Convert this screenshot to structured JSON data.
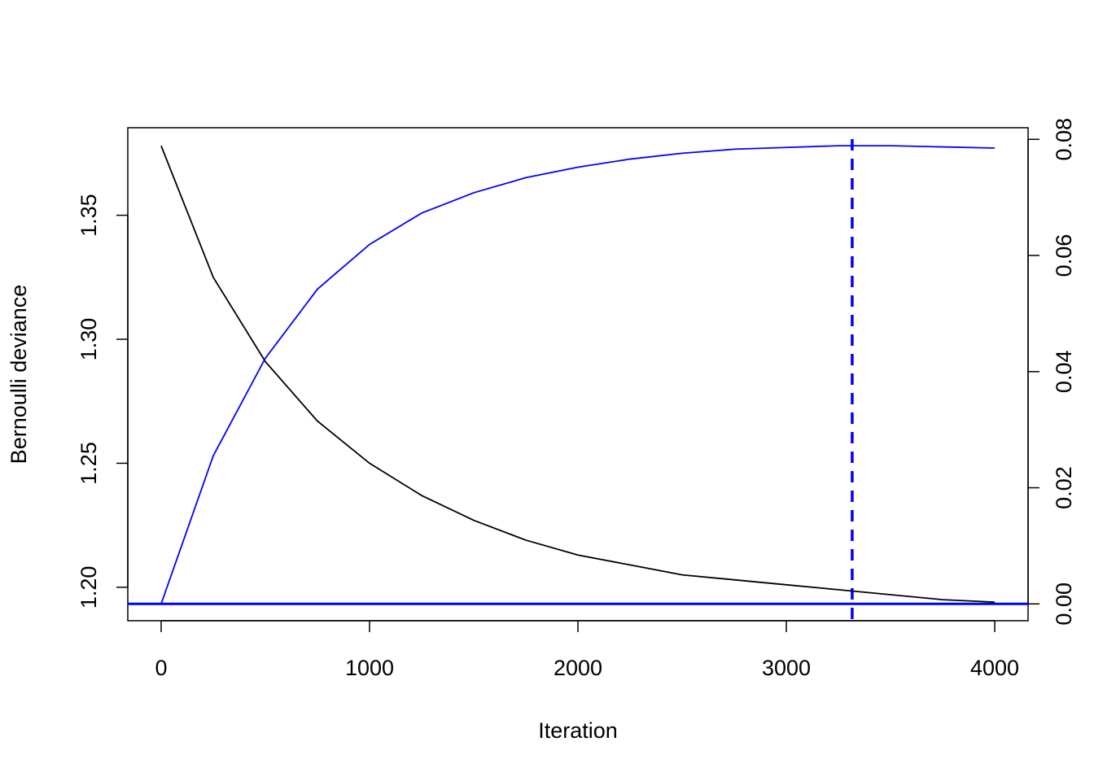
{
  "chart_data": {
    "type": "line",
    "x_label": "Iteration",
    "y_label": "Bernoulli deviance",
    "x": [
      0,
      250,
      500,
      750,
      1000,
      1250,
      1500,
      1750,
      2000,
      2250,
      2500,
      2750,
      3000,
      3250,
      3500,
      3750,
      4000
    ],
    "series": [
      {
        "color": "#000000",
        "values": [
          1.378,
          1.325,
          1.291,
          1.267,
          1.25,
          1.237,
          1.227,
          1.219,
          1.213,
          1.209,
          1.205,
          1.203,
          1.201,
          1.199,
          1.197,
          1.195,
          1.194
        ]
      },
      {
        "color": "#0000ff",
        "axis": "y2",
        "values": [
          0.0,
          0.0255,
          0.0423,
          0.0542,
          0.0619,
          0.0673,
          0.0708,
          0.0734,
          0.0752,
          0.0766,
          0.0776,
          0.0783,
          0.0786,
          0.0789,
          0.0789,
          0.0787,
          0.0785
        ]
      }
    ],
    "hline": 0,
    "hline_color": "#0000ff",
    "vline": 3316,
    "vline_color": "#0000ff",
    "xlim": [
      -160,
      4160
    ],
    "xticks": [
      0,
      1000,
      2000,
      3000,
      4000
    ],
    "ylim": [
      1.1865,
      1.3853
    ],
    "yticks": [
      {
        "value": 1.2,
        "label": "1.20"
      },
      {
        "value": 1.25,
        "label": "1.25"
      },
      {
        "value": 1.3,
        "label": "1.30"
      },
      {
        "value": 1.35,
        "label": "1.35"
      }
    ],
    "y2lim": [
      -0.0029,
      0.082
    ],
    "y2ticks": [
      {
        "value": 0,
        "label": "0.00"
      },
      0.02,
      0.04,
      0.06,
      0.08
    ]
  }
}
